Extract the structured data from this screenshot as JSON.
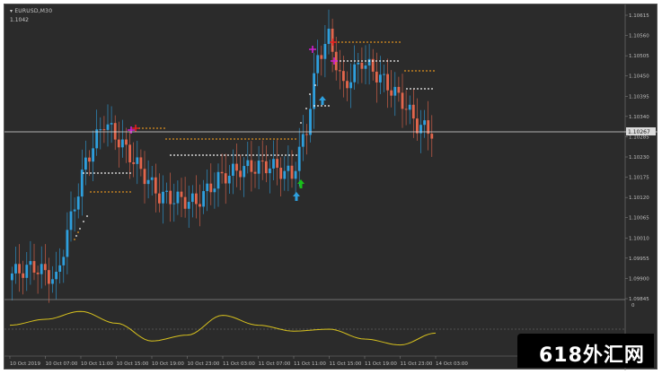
{
  "chart_header": {
    "symbol": "▾ EURUSD,M30",
    "subtitle": "1.1042"
  },
  "price_axis": {
    "ticks": [
      "1.10615",
      "1.10560",
      "1.10505",
      "1.10450",
      "1.10395",
      "1.10340",
      "1.10285",
      "1.10230",
      "1.10175",
      "1.10120",
      "1.10065",
      "1.10010",
      "1.09955",
      "1.09900",
      "1.09845"
    ],
    "current_price": "1.10267"
  },
  "time_axis": {
    "ticks": [
      "10 Oct 2019",
      "10 Oct 07:00",
      "10 Oct 11:00",
      "10 Oct 15:00",
      "10 Oct 19:00",
      "10 Oct 23:00",
      "11 Oct 03:00",
      "11 Oct 07:00",
      "11 Oct 11:00",
      "11 Oct 15:00",
      "11 Oct 19:00",
      "11 Oct 23:00",
      "14 Oct 03:00"
    ]
  },
  "oscillator": {
    "label": "0"
  },
  "watermark": "618外汇网",
  "colors": {
    "background": "#2b2b2b",
    "bull": "#2e9fdd",
    "bear": "#e3664c",
    "support": "#ffffff",
    "resistance": "#e8961e",
    "oscillator": "#d8c21e",
    "buy_arrow": "#19c019",
    "sell_arrow": "#e02020",
    "marker": "#d020d0"
  },
  "icons": [
    "buy-arrow-icon",
    "sell-arrow-icon",
    "cross-marker-icon"
  ],
  "chart_data": {
    "type": "candlestick",
    "title": "EURUSD,M30",
    "x": [
      "10 Oct 2019",
      "10 Oct 07:00",
      "10 Oct 11:00",
      "10 Oct 15:00",
      "10 Oct 19:00",
      "10 Oct 23:00",
      "11 Oct 03:00",
      "11 Oct 07:00",
      "11 Oct 11:00",
      "11 Oct 15:00",
      "11 Oct 19:00",
      "11 Oct 23:00",
      "14 Oct 03:00"
    ],
    "close": [
      1.0985,
      1.0999,
      1.103,
      1.1018,
      1.1008,
      1.1017,
      1.1019,
      1.1014,
      1.1052,
      1.1048,
      1.104,
      1.103,
      1.1027
    ],
    "ylim": [
      1.0977,
      1.1062
    ],
    "grid": false,
    "oscillator": [
      0.2,
      0.5,
      0.9,
      0.3,
      -0.6,
      -0.3,
      0.7,
      0.2,
      -0.1,
      0.0,
      -0.5,
      -0.8,
      -0.2
    ]
  }
}
